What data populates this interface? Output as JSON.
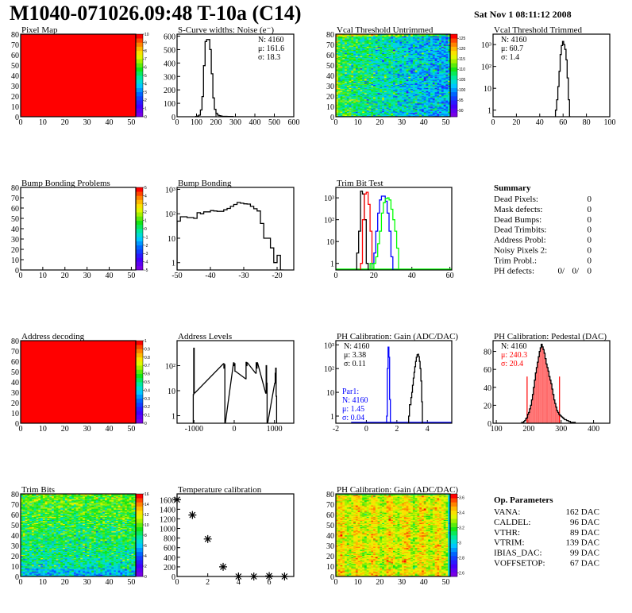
{
  "header": {
    "title": "M1040-071026.09:48 T-10a (C14)",
    "date": "Sat Nov  1 08:11:12 2008"
  },
  "colors": {
    "black": "#000000",
    "red": "#ff0000",
    "blue": "#0000ff",
    "green": "#00ff00"
  },
  "summary": {
    "heading": "Summary",
    "rows": [
      {
        "label": "Dead Pixels:",
        "value": "0"
      },
      {
        "label": "Mask defects:",
        "value": "0"
      },
      {
        "label": "Dead Bumps:",
        "value": "0"
      },
      {
        "label": "Dead Trimbits:",
        "value": "0"
      },
      {
        "label": "Address Probl:",
        "value": "0"
      },
      {
        "label": "Noisy Pixels 2:",
        "value": "0"
      },
      {
        "label": "Trim Probl.:",
        "value": "0"
      }
    ],
    "ph_defects": {
      "label": "PH defects:",
      "v1": "0/",
      "v2": "0/",
      "v3": "0"
    }
  },
  "op_parameters": {
    "heading": "Op. Parameters",
    "rows": [
      {
        "label": "VANA:",
        "value": "162 DAC"
      },
      {
        "label": "CALDEL:",
        "value": "96 DAC"
      },
      {
        "label": "VTHR:",
        "value": "89 DAC"
      },
      {
        "label": "VTRIM:",
        "value": "139 DAC"
      },
      {
        "label": "IBIAS_DAC:",
        "value": "99 DAC"
      },
      {
        "label": "VOFFSETOP:",
        "value": "67 DAC"
      }
    ]
  },
  "chart_data": [
    {
      "type": "heatmap",
      "title": "Pixel Map",
      "xlim": [
        0,
        52
      ],
      "ylim": [
        0,
        80
      ],
      "xticks": [
        "0",
        "10",
        "20",
        "30",
        "40",
        "50"
      ],
      "yticks": [
        "0",
        "10",
        "20",
        "30",
        "40",
        "50",
        "60",
        "70",
        "80"
      ],
      "z_range": [
        0,
        10
      ],
      "colorbar_ticks": [
        "0",
        "1",
        "2",
        "3",
        "4",
        "5",
        "6",
        "7",
        "8",
        "9",
        "10"
      ],
      "uniform_value": 10
    },
    {
      "type": "bar",
      "title": "S-Curve widths: Noise (e⁻)",
      "xlim": [
        0,
        600
      ],
      "ylim": [
        0,
        615
      ],
      "log": false,
      "xticks": [
        "0",
        "100",
        "200",
        "300",
        "400",
        "500",
        "600"
      ],
      "yticks": [
        "0",
        "100",
        "200",
        "300",
        "400",
        "500",
        "600"
      ],
      "bin_width": 8,
      "series": [
        {
          "color": "#000000",
          "x": [
            100,
            108,
            116,
            124,
            132,
            140,
            148,
            156,
            164,
            172,
            180,
            188,
            196,
            204,
            212,
            220,
            228,
            236,
            252,
            268,
            284
          ],
          "y": [
            2,
            5,
            12,
            50,
            150,
            380,
            560,
            575,
            575,
            500,
            320,
            140,
            55,
            25,
            12,
            8,
            5,
            3,
            3,
            2,
            2
          ]
        }
      ],
      "stats": {
        "position": "top-right",
        "lines": [
          "N: 4160",
          "μ: 161.6",
          "σ: 18.3"
        ]
      }
    },
    {
      "type": "heatmap",
      "title": "Vcal Threshold Untrimmed",
      "xlim": [
        0,
        52
      ],
      "ylim": [
        0,
        80
      ],
      "xticks": [
        "0",
        "10",
        "20",
        "30",
        "40",
        "50"
      ],
      "yticks": [
        "0",
        "10",
        "20",
        "30",
        "40",
        "50",
        "60",
        "70",
        "80"
      ],
      "z_range": [
        87,
        127
      ],
      "colorbar_ticks": [
        "90",
        "95",
        "100",
        "105",
        "110",
        "115",
        "120",
        "125"
      ],
      "mean": 105,
      "spread": 4
    },
    {
      "type": "bar",
      "title": "Vcal Threshold Trimmed",
      "xlim": [
        0,
        100
      ],
      "ylim": [
        0.5,
        3000
      ],
      "log": true,
      "xticks": [
        "0",
        "20",
        "40",
        "60",
        "80",
        "100"
      ],
      "yticks": [
        "1",
        "10",
        "10²",
        "10³"
      ],
      "bin_width": 1,
      "series": [
        {
          "color": "#000000",
          "x": [
            54,
            55,
            56,
            57,
            58,
            59,
            60,
            61,
            62,
            63,
            64,
            65,
            66
          ],
          "y": [
            1,
            3,
            12,
            60,
            350,
            900,
            1400,
            1000,
            600,
            200,
            30,
            3,
            0.5
          ]
        }
      ],
      "stats": {
        "position": "top-left",
        "lines": [
          "N: 4160",
          "μ: 60.7",
          "σ:  1.4"
        ]
      }
    },
    {
      "type": "heatmap",
      "title": "Bump Bonding Problems",
      "xlim": [
        0,
        52
      ],
      "ylim": [
        0,
        80
      ],
      "xticks": [
        "0",
        "10",
        "20",
        "30",
        "40",
        "50"
      ],
      "yticks": [
        "0",
        "10",
        "20",
        "30",
        "40",
        "50",
        "60",
        "70",
        "80"
      ],
      "z_range": [
        -5,
        5
      ],
      "colorbar_ticks": [
        "-5",
        "-4",
        "-3",
        "-2",
        "-1",
        "0",
        "1",
        "2",
        "3",
        "4",
        "5"
      ],
      "empty": true
    },
    {
      "type": "bar",
      "title": "Bump Bonding",
      "xlim": [
        -50,
        -15
      ],
      "ylim": [
        0.5,
        1200
      ],
      "log": true,
      "xticks": [
        "-50",
        "-40",
        "-30",
        "-20"
      ],
      "xtick_values": [
        -50,
        -40,
        -30,
        -20
      ],
      "yticks": [
        "1",
        "10",
        "10²",
        "10³"
      ],
      "bin_width": 1,
      "series": [
        {
          "color": "#000000",
          "x": [
            -49.5,
            -48.5,
            -47.5,
            -46.5,
            -45.5,
            -44.5,
            -43.5,
            -42.5,
            -41.5,
            -40.5,
            -39.5,
            -38.5,
            -37.5,
            -36.5,
            -35.5,
            -34.5,
            -33.5,
            -32.5,
            -31.5,
            -30.5,
            -29.5,
            -28.5,
            -27.5,
            -26.5,
            -25.5,
            -24.5,
            -23.5,
            -22.5,
            -21.5,
            -20.5,
            -19.5,
            -18.5
          ],
          "y": [
            50,
            75,
            75,
            70,
            70,
            65,
            110,
            100,
            120,
            120,
            135,
            130,
            125,
            125,
            145,
            165,
            200,
            240,
            290,
            270,
            255,
            250,
            200,
            160,
            130,
            40,
            10,
            10,
            4,
            1,
            2,
            0.4
          ]
        }
      ]
    },
    {
      "type": "bar",
      "title": "Trim Bit Test",
      "xlim": [
        0,
        61
      ],
      "ylim": [
        0.5,
        3000
      ],
      "log": true,
      "xticks": [
        "0",
        "20",
        "40",
        "60"
      ],
      "xtick_values": [
        0,
        20,
        40,
        60
      ],
      "yticks": [
        "1",
        "10",
        "10²",
        "10³"
      ],
      "bin_width": 1,
      "series": [
        {
          "color": "#000000",
          "x": [
            11.5,
            12.5,
            13.5,
            14.5,
            15.5,
            16.5
          ],
          "y": [
            3,
            30,
            2000,
            1500,
            100,
            1
          ]
        },
        {
          "color": "#ff0000",
          "x": [
            13.5,
            14.5,
            15.5,
            16.5,
            17.5,
            18.5
          ],
          "y": [
            1,
            100,
            1500,
            1800,
            500,
            30
          ]
        },
        {
          "color": "#0000ff",
          "x": [
            19.5,
            20.5,
            21.5,
            22.5,
            23.5,
            24.5,
            25.5,
            26.5,
            27.5,
            28.5,
            29.5,
            30.5,
            31.5,
            32.5
          ],
          "y": [
            1,
            3,
            30,
            200,
            800,
            1200,
            1200,
            700,
            200,
            30,
            2,
            0.4,
            0.4,
            0.4
          ]
        },
        {
          "color": "#00ff00",
          "x": [
            18.5,
            19.5,
            20.5,
            21.5,
            22.5,
            23.5,
            24.5,
            25.5,
            26.5,
            27.5,
            28.5,
            29.5,
            30.5,
            31.5,
            32.5,
            33.5
          ],
          "y": [
            1,
            0.4,
            1,
            2,
            8,
            30,
            200,
            600,
            900,
            1000,
            800,
            300,
            100,
            30,
            5,
            0.4
          ]
        }
      ],
      "baseline_range": [
        0,
        61
      ]
    },
    {
      "type": "heatmap",
      "title": "Address decoding",
      "xlim": [
        0,
        52
      ],
      "ylim": [
        0,
        80
      ],
      "xticks": [
        "0",
        "10",
        "20",
        "30",
        "40",
        "50"
      ],
      "yticks": [
        "0",
        "10",
        "20",
        "30",
        "40",
        "50",
        "60",
        "70",
        "80"
      ],
      "z_range": [
        0,
        1
      ],
      "colorbar_ticks": [
        "0",
        "0.1",
        "0.2",
        "0.3",
        "0.4",
        "0.5",
        "0.6",
        "0.7",
        "0.8",
        "0.9",
        "1"
      ],
      "uniform_value": 1
    },
    {
      "type": "bar",
      "title": "Address Levels",
      "xlim": [
        -1420,
        1480
      ],
      "ylim": [
        0.5,
        1000
      ],
      "log": true,
      "xticks": [
        "-1000",
        "0",
        "1000"
      ],
      "xtick_values": [
        -1000,
        0,
        1000
      ],
      "yticks": [
        "1",
        "10",
        "10²"
      ],
      "bin_width": 12,
      "series": [
        {
          "color": "#000000",
          "x": [
            -1012,
            -1000,
            -988,
            -262,
            -250,
            -238,
            -226,
            -12,
            0,
            12,
            24,
            288,
            300,
            312,
            324,
            538,
            550,
            562,
            574,
            788,
            800,
            812,
            824,
            1012,
            1024,
            1036,
            1048
          ],
          "y": [
            7,
            500,
            8,
            120,
            80,
            110,
            0.4,
            130,
            100,
            120,
            60,
            30,
            135,
            100,
            130,
            50,
            130,
            80,
            130,
            8,
            100,
            20,
            0.4,
            20,
            50,
            80,
            6
          ]
        }
      ]
    },
    {
      "type": "bar",
      "title": "PH Calibration: Gain (ADC/DAC)",
      "xlim": [
        -2,
        5.6
      ],
      "ylim": [
        0.5,
        1500
      ],
      "log": true,
      "xticks": [
        "-2",
        "0",
        "2",
        "4"
      ],
      "xtick_values": [
        -2,
        0,
        2,
        4
      ],
      "yticks": [
        "1",
        "10",
        "10²",
        "10³"
      ],
      "bin_width": 0.05,
      "series": [
        {
          "color": "#000000",
          "x": [
            2.8,
            2.85,
            2.9,
            2.95,
            3.0,
            3.05,
            3.1,
            3.15,
            3.2,
            3.25,
            3.3,
            3.35,
            3.4,
            3.45,
            3.5,
            3.55,
            3.6,
            3.65,
            3.7
          ],
          "y": [
            1,
            3,
            3,
            6,
            10,
            20,
            40,
            70,
            120,
            200,
            300,
            380,
            400,
            320,
            200,
            100,
            30,
            4,
            0.4
          ]
        },
        {
          "color": "#0000ff",
          "x": [
            1.35,
            1.4,
            1.45,
            1.5,
            1.55,
            1.6
          ],
          "y": [
            1,
            100,
            800,
            300,
            5,
            0.4
          ]
        }
      ],
      "baseline_range": [
        -1,
        5.6
      ],
      "baseline_color": "#0000ff",
      "stats": {
        "position": "top-left",
        "lines": [
          "N: 4160",
          "μ: 3.38",
          "σ: 0.11"
        ]
      },
      "stats2": {
        "position": "bottom-left",
        "color": "#0000ff",
        "lines": [
          "Par1:",
          "N: 4160",
          "μ: 1.45",
          "σ: 0.04"
        ]
      }
    },
    {
      "type": "bar",
      "title": "PH Calibration: Pedestal (DAC)",
      "xlim": [
        90,
        450
      ],
      "ylim": [
        0,
        92
      ],
      "log": false,
      "xticks": [
        "100",
        "200",
        "300",
        "400"
      ],
      "xtick_values": [
        100,
        200,
        300,
        400
      ],
      "yticks": [
        "0",
        "20",
        "40",
        "60",
        "80"
      ],
      "bin_width": 3,
      "series": [
        {
          "color": "#000000",
          "x": [
            180,
            183,
            186,
            189,
            192,
            195,
            198,
            201,
            204,
            207,
            210,
            213,
            216,
            219,
            222,
            225,
            228,
            231,
            234,
            237,
            240,
            243,
            246,
            249,
            252,
            255,
            258,
            261,
            264,
            267,
            270,
            273,
            276,
            279,
            282,
            285,
            288,
            291,
            294,
            297,
            300,
            303,
            306,
            309,
            312,
            315,
            318,
            321,
            324,
            327,
            330,
            333,
            336,
            339,
            342
          ],
          "y": [
            1,
            1,
            2,
            3,
            5,
            6,
            10,
            12,
            16,
            20,
            26,
            32,
            40,
            48,
            56,
            62,
            68,
            74,
            80,
            84,
            88,
            85,
            82,
            78,
            72,
            66,
            62,
            58,
            52,
            48,
            44,
            38,
            32,
            26,
            22,
            18,
            14,
            12,
            10,
            9,
            8,
            7,
            6,
            5,
            4,
            4,
            3,
            3,
            2,
            2,
            1,
            1,
            1,
            1,
            1
          ]
        }
      ],
      "fit_region": [
        195,
        295
      ],
      "fit_color": "#ff0000",
      "cut_lines": [
        195,
        295
      ],
      "cut_height": 52,
      "stats": {
        "position": "top-left",
        "lines": [
          "N: 4160",
          "μ: 240.3",
          "σ: 20.4"
        ],
        "colors": [
          "#000000",
          "#ff0000",
          "#ff0000"
        ]
      }
    },
    {
      "type": "heatmap",
      "title": "Trim Bits",
      "xlim": [
        0,
        52
      ],
      "ylim": [
        0,
        80
      ],
      "xticks": [
        "0",
        "10",
        "20",
        "30",
        "40",
        "50"
      ],
      "yticks": [
        "0",
        "10",
        "20",
        "30",
        "40",
        "50",
        "60",
        "70",
        "80"
      ],
      "z_range": [
        0,
        16
      ],
      "colorbar_ticks": [
        "0",
        "2",
        "4",
        "6",
        "8",
        "10",
        "12",
        "14",
        "16"
      ],
      "mean": 8.5,
      "spread": 1.4
    },
    {
      "type": "scatter",
      "title": "Temperature calibration",
      "xlim": [
        0,
        7.6
      ],
      "ylim": [
        0,
        1720
      ],
      "xticks": [
        "0",
        "2",
        "4",
        "6"
      ],
      "xtick_values": [
        0,
        2,
        4,
        6
      ],
      "yticks": [
        "0",
        "200",
        "400",
        "600",
        "800",
        "1000",
        "1200",
        "1400",
        "1600"
      ],
      "marker": "star",
      "points": [
        [
          0,
          1600
        ],
        [
          1,
          1280
        ],
        [
          2,
          780
        ],
        [
          3,
          200
        ],
        [
          4,
          0
        ],
        [
          5,
          0
        ],
        [
          6,
          10
        ],
        [
          7,
          0
        ]
      ]
    },
    {
      "type": "heatmap",
      "title": "PH Calibration: Gain (ADC/DAC)",
      "xlim": [
        0,
        52
      ],
      "ylim": [
        0,
        80
      ],
      "xticks": [
        "0",
        "10",
        "20",
        "30",
        "40",
        "50"
      ],
      "yticks": [
        "0",
        "10",
        "20",
        "30",
        "40",
        "50",
        "60",
        "70",
        "80"
      ],
      "z_range": [
        2.55,
        3.65
      ],
      "colorbar_ticks": [
        "2.6",
        "2.8",
        "3",
        "3.2",
        "3.4",
        "3.6"
      ],
      "mean": 3.4,
      "spread": 0.07
    }
  ]
}
